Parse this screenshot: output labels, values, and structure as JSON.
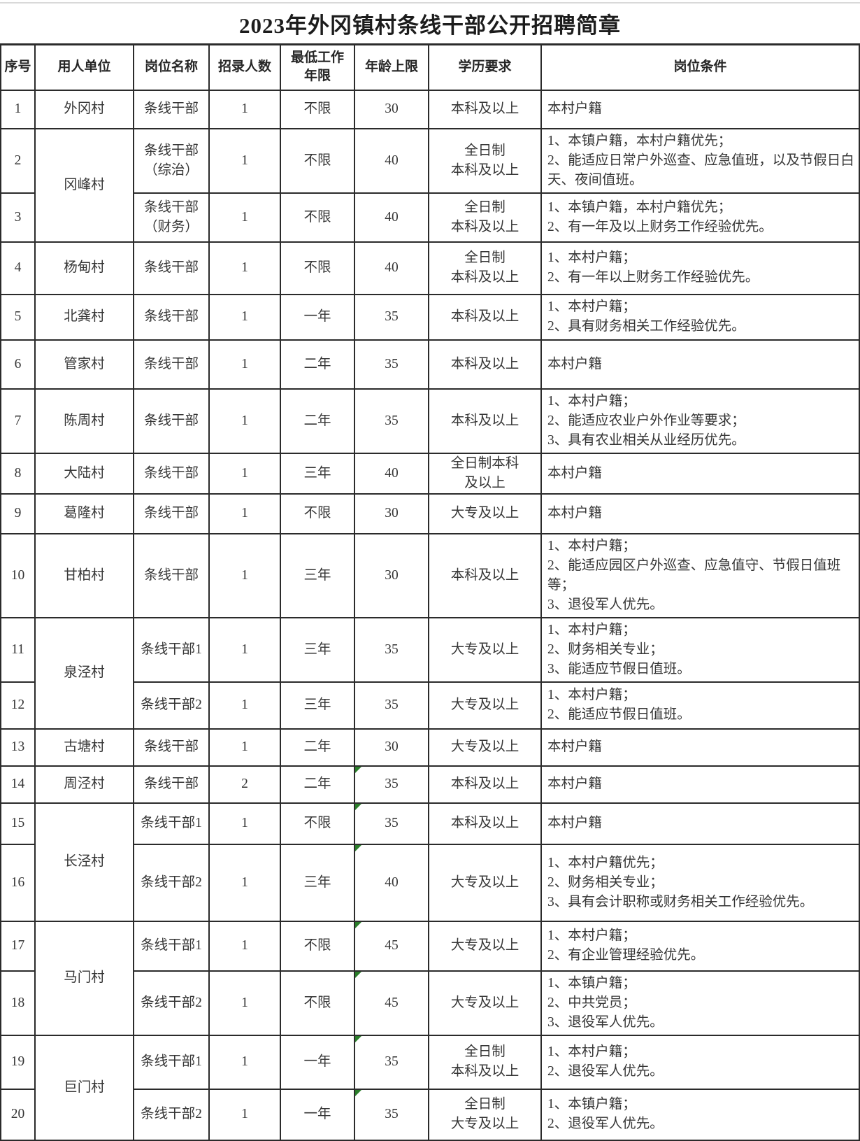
{
  "title": "2023年外冈镇村条线干部公开招聘简章",
  "table": {
    "columns": [
      "序号",
      "用人单位",
      "岗位名称",
      "招录人数",
      "最低工作\n年限",
      "年龄上限",
      "学历要求",
      "岗位条件"
    ],
    "rows": [
      {
        "no": "1",
        "unit": "外冈村",
        "unit_span": 1,
        "position": "条线干部",
        "count": "1",
        "years": "不限",
        "age": "30",
        "age_flagged": false,
        "education": "本科及以上",
        "conditions": "本村户籍"
      },
      {
        "no": "2",
        "unit": "冈峰村",
        "unit_span": 2,
        "position": "条线干部\n（综治）",
        "count": "1",
        "years": "不限",
        "age": "40",
        "age_flagged": false,
        "education": "全日制\n本科及以上",
        "conditions": "1、本镇户籍，本村户籍优先；\n2、能适应日常户外巡查、应急值班，以及节假日白天、夜间值班。"
      },
      {
        "no": "3",
        "unit": null,
        "position": "条线干部\n（财务）",
        "count": "1",
        "years": "不限",
        "age": "40",
        "age_flagged": false,
        "education": "全日制\n本科及以上",
        "conditions": "1、本镇户籍，本村户籍优先；\n2、有一年及以上财务工作经验优先。"
      },
      {
        "no": "4",
        "unit": "杨甸村",
        "unit_span": 1,
        "position": "条线干部",
        "count": "1",
        "years": "不限",
        "age": "40",
        "age_flagged": false,
        "education": "全日制\n本科及以上",
        "conditions": "1、本村户籍；\n2、有一年以上财务工作经验优先。"
      },
      {
        "no": "5",
        "unit": "北龚村",
        "unit_span": 1,
        "position": "条线干部",
        "count": "1",
        "years": "一年",
        "age": "35",
        "age_flagged": false,
        "education": "本科及以上",
        "conditions": "1、本村户籍；\n2、具有财务相关工作经验优先。"
      },
      {
        "no": "6",
        "unit": "管家村",
        "unit_span": 1,
        "position": "条线干部",
        "count": "1",
        "years": "二年",
        "age": "35",
        "age_flagged": false,
        "education": "本科及以上",
        "conditions": "本村户籍"
      },
      {
        "no": "7",
        "unit": "陈周村",
        "unit_span": 1,
        "position": "条线干部",
        "count": "1",
        "years": "二年",
        "age": "35",
        "age_flagged": false,
        "education": "本科及以上",
        "conditions": "1、本村户籍；\n2、能适应农业户外作业等要求；\n3、具有农业相关从业经历优先。"
      },
      {
        "no": "8",
        "unit": "大陆村",
        "unit_span": 1,
        "position": "条线干部",
        "count": "1",
        "years": "三年",
        "age": "40",
        "age_flagged": false,
        "education": "全日制本科\n及以上",
        "conditions": "本村户籍"
      },
      {
        "no": "9",
        "unit": "葛隆村",
        "unit_span": 1,
        "position": "条线干部",
        "count": "1",
        "years": "不限",
        "age": "30",
        "age_flagged": false,
        "education": "大专及以上",
        "conditions": "本村户籍"
      },
      {
        "no": "10",
        "unit": "甘柏村",
        "unit_span": 1,
        "position": "条线干部",
        "count": "1",
        "years": "三年",
        "age": "30",
        "age_flagged": false,
        "education": "本科及以上",
        "conditions": "1、本村户籍；\n2、能适应园区户外巡查、应急值守、节假日值班等；\n3、退役军人优先。"
      },
      {
        "no": "11",
        "unit": "泉泾村",
        "unit_span": 2,
        "position": "条线干部1",
        "count": "1",
        "years": "三年",
        "age": "35",
        "age_flagged": false,
        "education": "大专及以上",
        "conditions": "1、本村户籍；\n2、财务相关专业；\n3、能适应节假日值班。"
      },
      {
        "no": "12",
        "unit": null,
        "position": "条线干部2",
        "count": "1",
        "years": "三年",
        "age": "35",
        "age_flagged": false,
        "education": "大专及以上",
        "conditions": "1、本村户籍；\n2、能适应节假日值班。"
      },
      {
        "no": "13",
        "unit": "古塘村",
        "unit_span": 1,
        "position": "条线干部",
        "count": "1",
        "years": "二年",
        "age": "30",
        "age_flagged": false,
        "education": "大专及以上",
        "conditions": "本村户籍"
      },
      {
        "no": "14",
        "unit": "周泾村",
        "unit_span": 1,
        "position": "条线干部",
        "count": "2",
        "years": "二年",
        "age": "35",
        "age_flagged": true,
        "education": "本科及以上",
        "conditions": "本村户籍"
      },
      {
        "no": "15",
        "unit": "长泾村",
        "unit_span": 2,
        "position": "条线干部1",
        "count": "1",
        "years": "不限",
        "age": "35",
        "age_flagged": true,
        "education": "本科及以上",
        "conditions": "本村户籍"
      },
      {
        "no": "16",
        "unit": null,
        "position": "条线干部2",
        "count": "1",
        "years": "三年",
        "age": "40",
        "age_flagged": true,
        "education": "大专及以上",
        "conditions": "1、本村户籍优先；\n2、财务相关专业；\n3、具有会计职称或财务相关工作经验优先。"
      },
      {
        "no": "17",
        "unit": "马门村",
        "unit_span": 2,
        "position": "条线干部1",
        "count": "1",
        "years": "不限",
        "age": "45",
        "age_flagged": true,
        "education": "大专及以上",
        "conditions": "1、本村户籍；\n2、有企业管理经验优先。"
      },
      {
        "no": "18",
        "unit": null,
        "position": "条线干部2",
        "count": "1",
        "years": "不限",
        "age": "45",
        "age_flagged": true,
        "education": "大专及以上",
        "conditions": "1、本镇户籍；\n2、中共党员；\n3、退役军人优先。"
      },
      {
        "no": "19",
        "unit": "巨门村",
        "unit_span": 2,
        "position": "条线干部1",
        "count": "1",
        "years": "一年",
        "age": "35",
        "age_flagged": true,
        "education": "全日制\n本科及以上",
        "conditions": "1、本村户籍；\n2、退役军人优先。"
      },
      {
        "no": "20",
        "unit": null,
        "position": "条线干部2",
        "count": "1",
        "years": "一年",
        "age": "35",
        "age_flagged": true,
        "education": "全日制\n大专及以上",
        "conditions": "1、本镇户籍；\n2、退役军人优先。"
      }
    ]
  },
  "colors": {
    "border": "#2b2b2b",
    "text": "#363636",
    "title_text": "#1c1c1c",
    "flag_green": "#2a7e2a"
  }
}
